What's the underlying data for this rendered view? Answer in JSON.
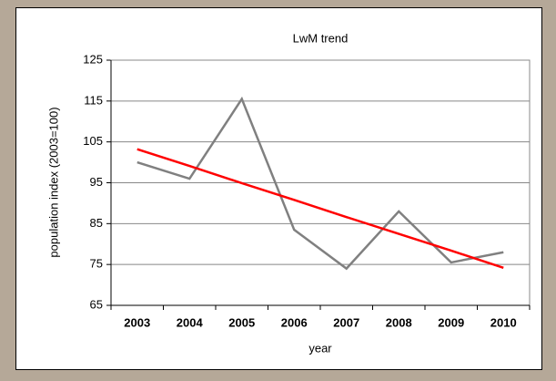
{
  "chart_data": {
    "type": "line",
    "title": "LwM trend",
    "x_label": "year",
    "y_label": "population index (2003=100)",
    "categories": [
      "2003",
      "2004",
      "2005",
      "2006",
      "2007",
      "2008",
      "2009",
      "2010"
    ],
    "series": [
      {
        "name": "LwM",
        "color": "#808080",
        "values": [
          100,
          96,
          115.5,
          83.5,
          74,
          88,
          75.5,
          78
        ]
      },
      {
        "name": "trend",
        "color": "#ff0000",
        "values": [
          103.2,
          99.1,
          94.9,
          90.8,
          86.6,
          82.5,
          78.4,
          74.2
        ]
      }
    ],
    "ylim": [
      65,
      125
    ],
    "yticks": [
      65,
      75,
      85,
      95,
      105,
      115,
      125
    ],
    "grid": true
  }
}
